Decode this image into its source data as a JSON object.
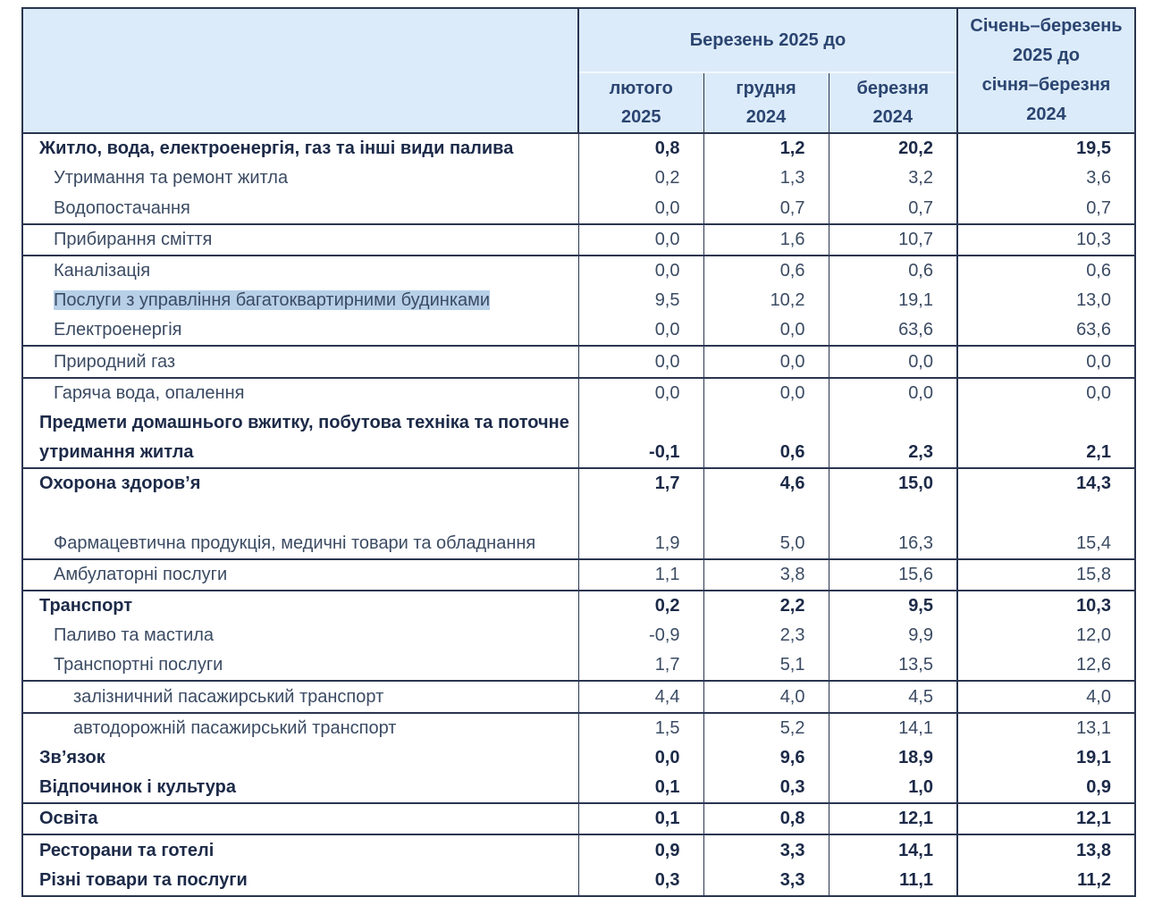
{
  "header": {
    "group_label": "Березень 2025 до",
    "columns": [
      {
        "line1": "лютого",
        "line2": "2025"
      },
      {
        "line1": "грудня",
        "line2": "2024"
      },
      {
        "line1": "березня",
        "line2": "2024"
      }
    ],
    "ytd": {
      "line1": "Січень–березень",
      "line2": "2025 до",
      "line3": "січня–березня",
      "line4": "2024"
    }
  },
  "rows": [
    {
      "label": "Житло, вода, електроенергія, газ та інші види палива",
      "values": [
        "0,8",
        "1,2",
        "20,2",
        "19,5"
      ]
    },
    {
      "label": "Утримання та ремонт житла",
      "values": [
        "0,2",
        "1,3",
        "3,2",
        "3,6"
      ]
    },
    {
      "label": "Водопостачання",
      "values": [
        "0,0",
        "0,7",
        "0,7",
        "0,7"
      ]
    },
    {
      "label": "Прибирання сміття",
      "values": [
        "0,0",
        "1,6",
        "10,7",
        "10,3"
      ]
    },
    {
      "label": "Каналізація",
      "values": [
        "0,0",
        "0,6",
        "0,6",
        "0,6"
      ]
    },
    {
      "label": "Послуги з управління багатоквартирними будинками",
      "values": [
        "9,5",
        "10,2",
        "19,1",
        "13,0"
      ],
      "selected": true
    },
    {
      "label": "Електроенергія",
      "values": [
        "0,0",
        "0,0",
        "63,6",
        "63,6"
      ]
    },
    {
      "label": "Природний газ",
      "values": [
        "0,0",
        "0,0",
        "0,0",
        "0,0"
      ]
    },
    {
      "label": "Гаряча вода, опалення",
      "values": [
        "0,0",
        "0,0",
        "0,0",
        "0,0"
      ]
    },
    {
      "label": "Предмети домашнього вжитку, побутова техніка та поточне утримання житла",
      "values": [
        "-0,1",
        "0,6",
        "2,3",
        "2,1"
      ]
    },
    {
      "label": "Охорона здоров’я",
      "values": [
        "1,7",
        "4,6",
        "15,0",
        "14,3"
      ]
    },
    {
      "label": "Фармацевтична продукція, медичні товари та обладнання",
      "values": [
        "1,9",
        "5,0",
        "16,3",
        "15,4"
      ]
    },
    {
      "label": "Амбулаторні послуги",
      "values": [
        "1,1",
        "3,8",
        "15,6",
        "15,8"
      ]
    },
    {
      "label": "Транспорт",
      "values": [
        "0,2",
        "2,2",
        "9,5",
        "10,3"
      ]
    },
    {
      "label": "Паливо та мастила",
      "values": [
        "-0,9",
        "2,3",
        "9,9",
        "12,0"
      ]
    },
    {
      "label": "Транспортні послуги",
      "values": [
        "1,7",
        "5,1",
        "13,5",
        "12,6"
      ]
    },
    {
      "label": "залізничний пасажирський транспорт",
      "values": [
        "4,4",
        "4,0",
        "4,5",
        "4,0"
      ]
    },
    {
      "label": "автодорожній пасажирський транспорт",
      "values": [
        "1,5",
        "5,2",
        "14,1",
        "13,1"
      ]
    },
    {
      "label": "Зв’язок",
      "values": [
        "0,0",
        "9,6",
        "18,9",
        "19,1"
      ]
    },
    {
      "label": "Відпочинок і культура",
      "values": [
        "0,1",
        "0,3",
        "1,0",
        "0,9"
      ]
    },
    {
      "label": "Освіта",
      "values": [
        "0,1",
        "0,8",
        "12,1",
        "12,1"
      ]
    },
    {
      "label": "Ресторани та готелі",
      "values": [
        "0,9",
        "3,3",
        "14,1",
        "13,8"
      ]
    },
    {
      "label": "Різні товари та послуги",
      "values": [
        "0,3",
        "3,3",
        "11,1",
        "11,2"
      ]
    }
  ]
}
